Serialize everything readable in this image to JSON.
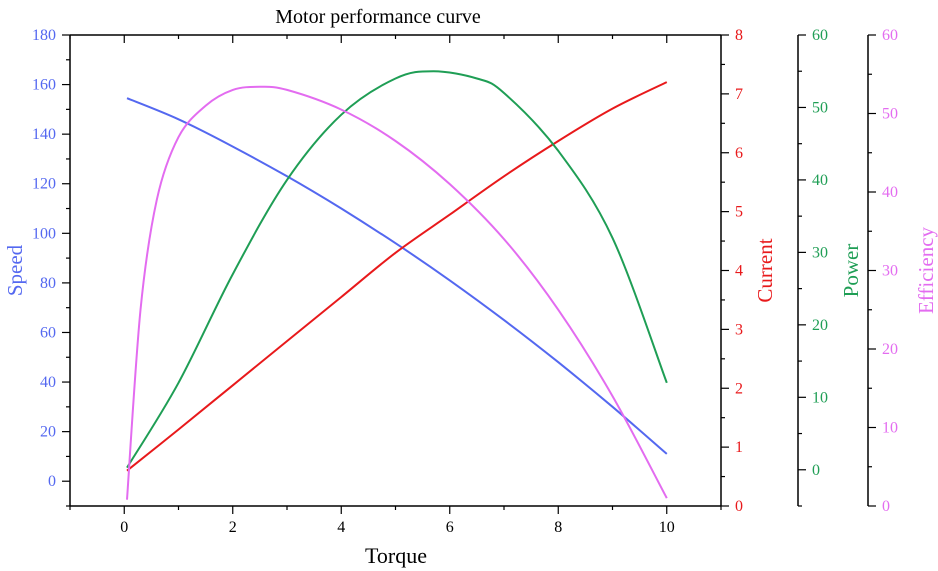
{
  "chart_data": {
    "type": "line",
    "title": "Motor performance curve",
    "xlabel": "Torque",
    "xlim": [
      -1,
      11
    ],
    "xticks": [
      0,
      2,
      4,
      6,
      8,
      10
    ],
    "axes": [
      {
        "key": "speed",
        "label": "Speed",
        "color": "#5468F0",
        "lim": [
          -10,
          180
        ],
        "ticks": [
          0,
          20,
          40,
          60,
          80,
          100,
          120,
          140,
          160,
          180
        ]
      },
      {
        "key": "current",
        "label": "Current",
        "color": "#E8191B",
        "lim": [
          0,
          8
        ],
        "ticks": [
          0,
          1,
          2,
          3,
          4,
          5,
          6,
          7,
          8
        ]
      },
      {
        "key": "power",
        "label": "Power",
        "color": "#1F9E55",
        "lim": [
          -5,
          60
        ],
        "ticks": [
          0,
          10,
          20,
          30,
          40,
          50,
          60
        ]
      },
      {
        "key": "efficiency",
        "label": "Efficiency",
        "color": "#E36CF0",
        "lim": [
          0,
          60
        ],
        "ticks": [
          0,
          10,
          20,
          30,
          40,
          50,
          60
        ]
      }
    ],
    "series": [
      {
        "name": "Speed",
        "axis": "speed",
        "color": "#5468F0",
        "x": [
          0.05,
          1,
          2,
          3,
          4,
          5,
          6,
          7,
          8,
          9,
          10
        ],
        "y": [
          154.5,
          146,
          135,
          123,
          110,
          96,
          81,
          65,
          48,
          30,
          11
        ]
      },
      {
        "name": "Current",
        "axis": "current",
        "color": "#E8191B",
        "x": [
          0.05,
          1,
          2,
          3,
          4,
          5,
          6,
          7,
          8,
          9,
          10
        ],
        "y": [
          0.6,
          1.3,
          2.05,
          2.8,
          3.55,
          4.3,
          4.95,
          5.6,
          6.2,
          6.75,
          7.2
        ]
      },
      {
        "name": "Power",
        "axis": "power",
        "color": "#1F9E55",
        "x": [
          0.05,
          1,
          2,
          3,
          4,
          5,
          5.7,
          6.5,
          7,
          8,
          9,
          10
        ],
        "y": [
          0.3,
          12,
          27,
          40,
          49,
          54,
          55,
          54,
          52,
          44,
          32,
          12
        ]
      },
      {
        "name": "Efficiency",
        "axis": "efficiency",
        "color": "#E36CF0",
        "x": [
          0.05,
          0.3,
          0.6,
          1,
          1.5,
          2,
          2.5,
          3,
          4,
          5,
          6,
          7,
          8,
          9,
          10
        ],
        "y": [
          0.8,
          25,
          39,
          47,
          51,
          53,
          53.4,
          53,
          50.5,
          46.5,
          41,
          34,
          25,
          14,
          1
        ]
      }
    ]
  }
}
